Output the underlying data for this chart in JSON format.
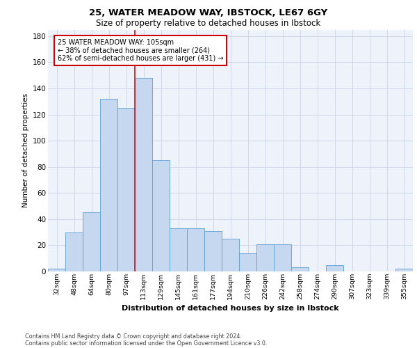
{
  "title1": "25, WATER MEADOW WAY, IBSTOCK, LE67 6GY",
  "title2": "Size of property relative to detached houses in Ibstock",
  "xlabel": "Distribution of detached houses by size in Ibstock",
  "ylabel": "Number of detached properties",
  "categories": [
    "32sqm",
    "48sqm",
    "64sqm",
    "80sqm",
    "97sqm",
    "113sqm",
    "129sqm",
    "145sqm",
    "161sqm",
    "177sqm",
    "194sqm",
    "210sqm",
    "226sqm",
    "242sqm",
    "258sqm",
    "274sqm",
    "290sqm",
    "307sqm",
    "323sqm",
    "339sqm",
    "355sqm"
  ],
  "values": [
    2,
    30,
    45,
    132,
    125,
    148,
    85,
    33,
    33,
    31,
    25,
    14,
    21,
    21,
    3,
    0,
    5,
    0,
    0,
    0,
    2
  ],
  "bar_color": "#c5d8f0",
  "bar_edge_color": "#5a9fd4",
  "grid_color": "#d0d8e8",
  "bg_color": "#eef2fb",
  "red_line_x": 4.5,
  "annotation_text": "25 WATER MEADOW WAY: 105sqm\n← 38% of detached houses are smaller (264)\n62% of semi-detached houses are larger (431) →",
  "annotation_box_color": "#ffffff",
  "annotation_border_color": "#cc0000",
  "ylim": [
    0,
    185
  ],
  "yticks": [
    0,
    20,
    40,
    60,
    80,
    100,
    120,
    140,
    160,
    180
  ],
  "footer1": "Contains HM Land Registry data © Crown copyright and database right 2024.",
  "footer2": "Contains public sector information licensed under the Open Government Licence v3.0."
}
